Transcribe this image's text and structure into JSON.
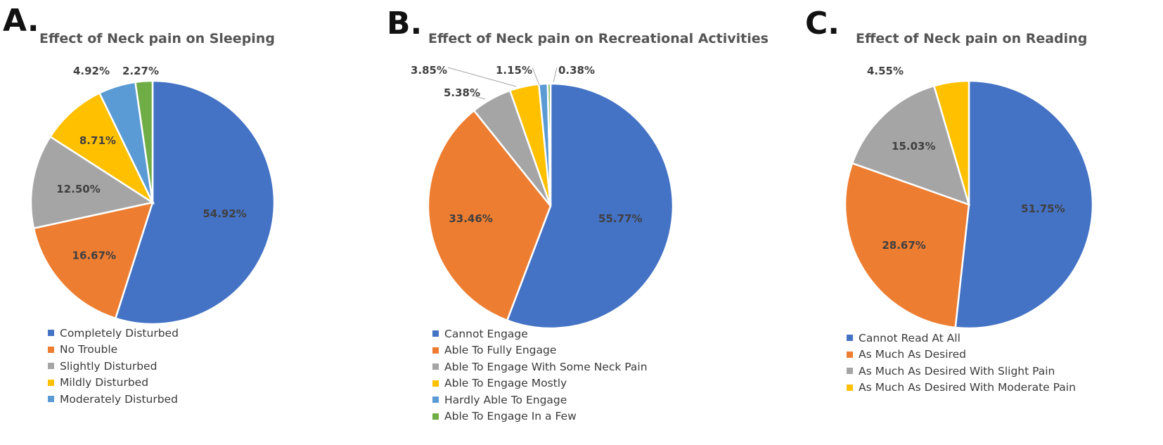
{
  "chart_data": [
    {
      "type": "pie",
      "panel_label": "A.",
      "title": "Effect of Neck pain on Sleeping",
      "categories": [
        "Completely Disturbed",
        "No Trouble",
        "Slightly Disturbed",
        "Mildly Disturbed",
        "Moderately Disturbed",
        ""
      ],
      "values": [
        54.92,
        16.67,
        12.5,
        8.71,
        4.92,
        2.27
      ],
      "value_labels": [
        "54.92%",
        "16.67%",
        "12.50%",
        "8.71%",
        "4.92%",
        "2.27%"
      ],
      "colors": [
        "#4472c4",
        "#ed7d31",
        "#a5a5a5",
        "#ffc000",
        "#5b9bd5",
        "#70ad47"
      ],
      "legend": [
        "Completely Disturbed",
        "No Trouble",
        "Slightly Disturbed",
        "Mildly Disturbed",
        "Moderately Disturbed"
      ],
      "legend_placement": "bottom"
    },
    {
      "type": "pie",
      "panel_label": "B.",
      "title": "Effect of Neck pain on Recreational Activities",
      "categories": [
        "Cannot Engage",
        "Able To Fully Engage",
        "Able To Engage With Some Neck Pain",
        "Able To Engage Mostly",
        "Hardly Able To Engage",
        "Able To Engage In a Few"
      ],
      "values": [
        55.77,
        33.46,
        5.38,
        3.85,
        1.15,
        0.38
      ],
      "value_labels": [
        "55.77%",
        "33.46%",
        "5.38%",
        "3.85%",
        "1.15%",
        "0.38%"
      ],
      "colors": [
        "#4472c4",
        "#ed7d31",
        "#a5a5a5",
        "#ffc000",
        "#5b9bd5",
        "#70ad47"
      ],
      "legend": [
        "Cannot Engage",
        "Able To Fully Engage",
        "Able To Engage With Some Neck Pain",
        "Able To Engage Mostly",
        "Hardly Able To Engage",
        "Able To Engage In a Few"
      ],
      "legend_placement": "bottom"
    },
    {
      "type": "pie",
      "panel_label": "C.",
      "title": "Effect of Neck pain on Reading",
      "categories": [
        "Cannot Read At All",
        "As Much As Desired",
        "As Much As Desired With Slight Pain",
        "As Much As Desired With Moderate Pain"
      ],
      "values": [
        51.75,
        28.67,
        15.03,
        4.55
      ],
      "value_labels": [
        "51.75%",
        "28.67%",
        "15.03%",
        "4.55%"
      ],
      "colors": [
        "#4472c4",
        "#ed7d31",
        "#a5a5a5",
        "#ffc000"
      ],
      "legend": [
        "Cannot Read At All",
        "As Much As Desired",
        "As Much As Desired With Slight Pain",
        "As Much As Desired With Moderate Pain"
      ],
      "legend_placement": "bottom"
    }
  ]
}
